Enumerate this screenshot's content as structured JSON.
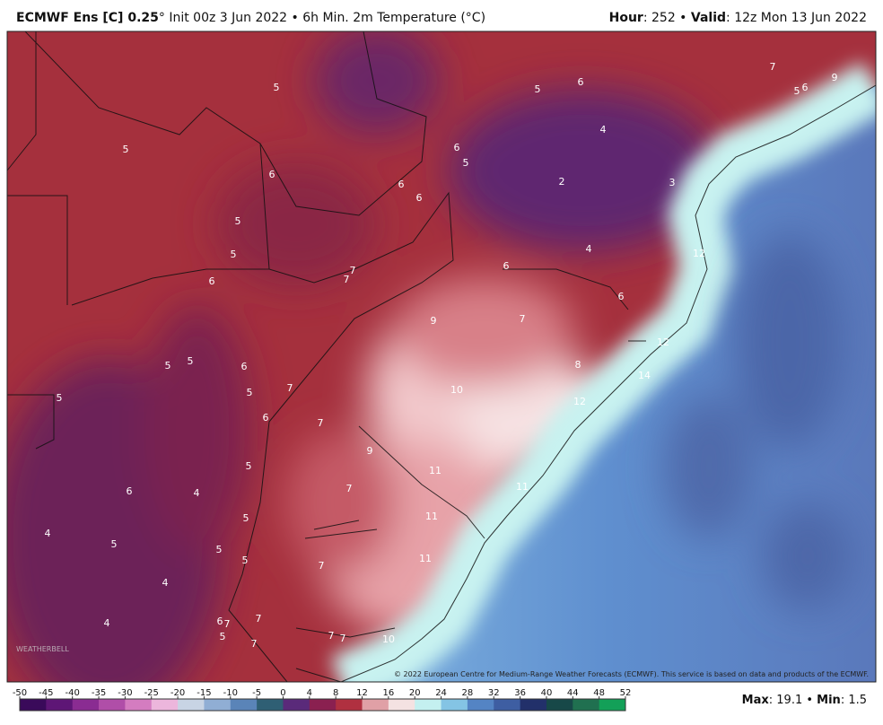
{
  "header": {
    "model": "ECMWF Ens [C] 0.25",
    "description": "° Init 00z 3 Jun 2022 • 6h Min. 2m Temperature (°C)",
    "hour_label": "Hour",
    "hour_text": ": 252 • ",
    "valid_label": "Valid",
    "valid_text": ": 12z Mon 13 Jun 2022"
  },
  "map_labels": [
    5,
    5,
    6,
    7,
    5,
    6,
    9,
    5,
    4,
    6,
    5,
    6,
    6,
    6,
    2,
    3,
    5,
    4,
    5,
    12,
    6,
    7,
    7,
    6,
    6,
    9,
    7,
    12,
    5,
    5,
    6,
    8,
    14,
    5,
    5,
    7,
    10,
    12,
    6,
    7,
    9,
    11,
    5,
    6,
    4,
    7,
    11,
    5,
    11,
    4,
    5,
    5,
    5,
    7,
    11,
    4,
    4,
    6,
    7,
    7,
    5,
    7,
    10,
    7,
    7
  ],
  "copyright": "© 2022 European Centre for Medium-Range Weather Forecasts (ECMWF). This service is based on data and products of the ECMWF.",
  "logo": "WEATHERBELL",
  "colorbar": {
    "ticks": [
      -50,
      -45,
      -40,
      -35,
      -30,
      -25,
      -20,
      -15,
      -10,
      -5,
      0,
      4,
      8,
      12,
      16,
      20,
      24,
      28,
      32,
      36,
      40,
      44,
      48,
      52
    ]
  },
  "footer": {
    "max_label": "Max",
    "max_text": ": 19.1 • ",
    "min_label": "Min",
    "min_text": ": 1.5"
  }
}
